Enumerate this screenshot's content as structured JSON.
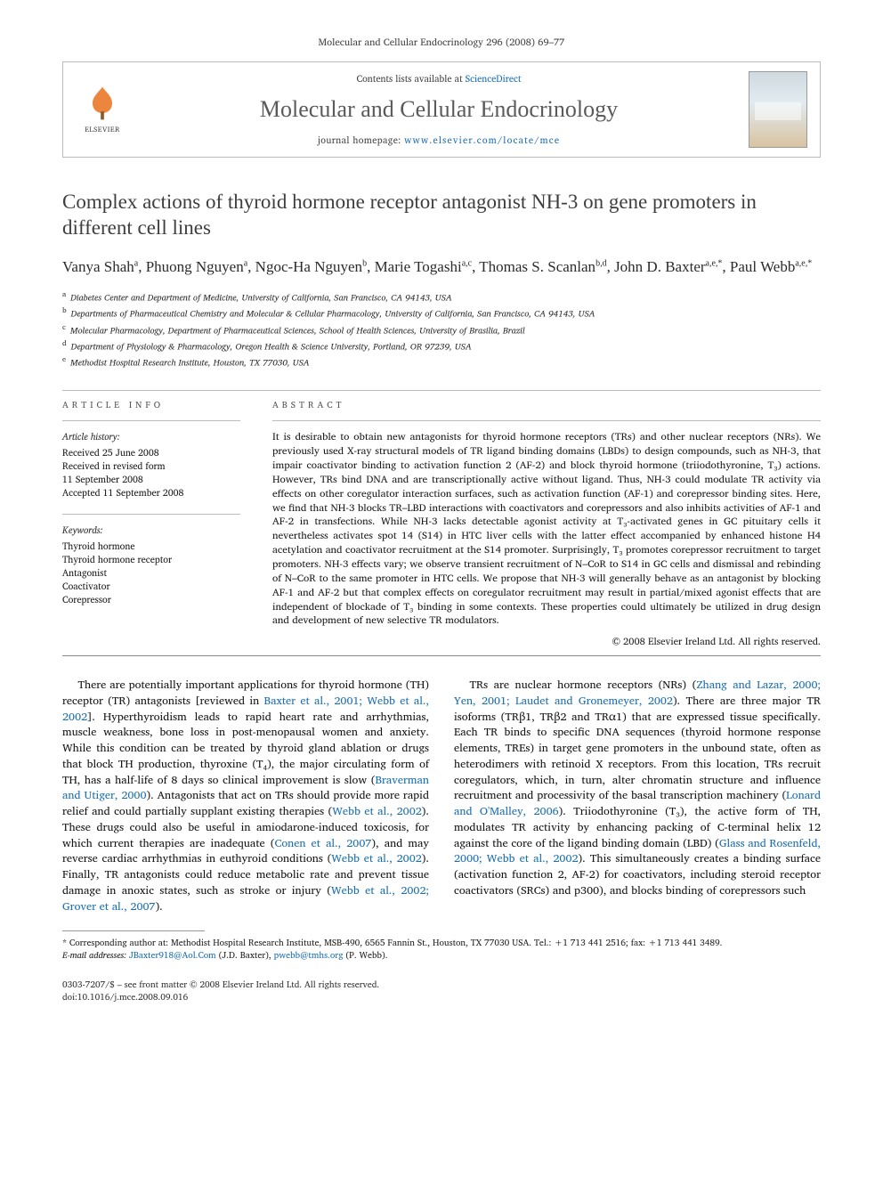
{
  "journal_ref": "Molecular and Cellular Endocrinology 296 (2008) 69–77",
  "header": {
    "contents_prefix": "Contents lists available at ",
    "contents_link": "ScienceDirect",
    "journal_name": "Molecular and Cellular Endocrinology",
    "homepage_prefix": "journal homepage: ",
    "homepage_url": "www.elsevier.com/locate/mce",
    "publisher": "ELSEVIER"
  },
  "title": "Complex actions of thyroid hormone receptor antagonist NH-3 on gene promoters in different cell lines",
  "authors_html": "Vanya Shah<sup>a</sup>, Phuong Nguyen<sup>a</sup>, Ngoc-Ha Nguyen<sup>b</sup>, Marie Togashi<sup>a,c</sup>, Thomas S. Scanlan<sup>b,d</sup>, John D. Baxter<sup>a,e,*</sup>, Paul Webb<sup>a,e,*</sup>",
  "affiliations": [
    {
      "sup": "a",
      "text": "Diabetes Center and Department of Medicine, University of California, San Francisco, CA 94143, USA"
    },
    {
      "sup": "b",
      "text": "Departments of Pharmaceutical Chemistry and Molecular & Cellular Pharmacology, University of California, San Francisco, CA 94143, USA"
    },
    {
      "sup": "c",
      "text": "Molecular Pharmacology, Department of Pharmaceutical Sciences, School of Health Sciences, University of Brasilia, Brazil"
    },
    {
      "sup": "d",
      "text": "Department of Physiology & Pharmacology, Oregon Health & Science University, Portland, OR 97239, USA"
    },
    {
      "sup": "e",
      "text": "Methodist Hospital Research Institute, Houston, TX 77030, USA"
    }
  ],
  "article_info": {
    "heading": "article info",
    "history_label": "Article history:",
    "history": [
      "Received 25 June 2008",
      "Received in revised form",
      "11 September 2008",
      "Accepted 11 September 2008"
    ],
    "keywords_label": "Keywords:",
    "keywords": [
      "Thyroid hormone",
      "Thyroid hormone receptor",
      "Antagonist",
      "Coactivator",
      "Corepressor"
    ]
  },
  "abstract": {
    "heading": "abstract",
    "text": "It is desirable to obtain new antagonists for thyroid hormone receptors (TRs) and other nuclear receptors (NRs). We previously used X-ray structural models of TR ligand binding domains (LBDs) to design compounds, such as NH-3, that impair coactivator binding to activation function 2 (AF-2) and block thyroid hormone (triiodothyronine, T₃) actions. However, TRs bind DNA and are transcriptionally active without ligand. Thus, NH-3 could modulate TR activity via effects on other coregulator interaction surfaces, such as activation function (AF-1) and corepressor binding sites. Here, we find that NH-3 blocks TR–LBD interactions with coactivators and corepressors and also inhibits activities of AF-1 and AF-2 in transfections. While NH-3 lacks detectable agonist activity at T₃-activated genes in GC pituitary cells it nevertheless activates spot 14 (S14) in HTC liver cells with the latter effect accompanied by enhanced histone H4 acetylation and coactivator recruitment at the S14 promoter. Surprisingly, T₃ promotes corepressor recruitment to target promoters. NH-3 effects vary; we observe transient recruitment of N–CoR to S14 in GC cells and dismissal and rebinding of N–CoR to the same promoter in HTC cells. We propose that NH-3 will generally behave as an antagonist by blocking AF-1 and AF-2 but that complex effects on coregulator recruitment may result in partial/mixed agonist effects that are independent of blockade of T₃ binding in some contexts. These properties could ultimately be utilized in drug design and development of new selective TR modulators.",
    "copyright": "© 2008 Elsevier Ireland Ltd. All rights reserved."
  },
  "body": {
    "p1_a": "There are potentially important applications for thyroid hormone (TH) receptor (TR) antagonists [reviewed in ",
    "cite1": "Baxter et al., 2001; Webb et al., 2002",
    "p1_b": "]. Hyperthyroidism leads to rapid heart rate and arrhythmias, muscle weakness, bone loss in post-menopausal women and anxiety. While this condition can be treated by thyroid gland ablation or drugs that block TH production, thyroxine (T₄), the major circulating form of TH, has a half-life of 8 days so clinical improvement is slow (",
    "cite2": "Braverman and Utiger, 2000",
    "p1_c": "). Antagonists that act on TRs should provide more rapid relief and could partially supplant existing therapies (",
    "cite3": "Webb et al., 2002",
    "p1_d": "). These drugs could also be useful in amiodarone-induced toxicosis, for which current therapies are inadequate (",
    "cite4": "Conen et al., 2007",
    "p1_e": "), and may reverse cardiac arrhythmias in euthyroid conditions (",
    "cite5": "Webb et al., 2002",
    "p1_f": "). Finally, TR antagonists could reduce metabolic rate and prevent tissue damage in anoxic states, such as stroke or injury (",
    "cite6": "Webb et al., 2002; Grover et al., 2007",
    "p1_g": ").",
    "p2_a": "TRs are nuclear hormone receptors (NRs) (",
    "cite7": "Zhang and Lazar, 2000; Yen, 2001; Laudet and Gronemeyer, 2002",
    "p2_b": "). There are three major TR isoforms (TRβ1, TRβ2 and TRα1) that are expressed tissue specifically. Each TR binds to specific DNA sequences (thyroid hormone response elements, TREs) in target gene promoters in the unbound state, often as heterodimers with retinoid X receptors. From this location, TRs recruit coregulators, which, in turn, alter chromatin structure and influence recruitment and processivity of the basal transcription machinery (",
    "cite8": "Lonard and O'Malley, 2006",
    "p2_c": "). Triiodothyronine (T₃), the active form of TH, modulates TR activity by enhancing packing of C-terminal helix 12 against the core of the ligand binding domain (LBD) (",
    "cite9": "Glass and Rosenfeld, 2000; Webb et al., 2002",
    "p2_d": "). This simultaneously creates a binding surface (activation function 2, AF-2) for coactivators, including steroid receptor coactivators (SRCs) and p300), and blocks binding of corepressors such"
  },
  "footnotes": {
    "corr_label": "* Corresponding author at: Methodist Hospital Research Institute, MSB-490, 6565 Fannin St., Houston, TX 77030 USA. Tel.: +1 713 441 2516; fax: +1 713 441 3489.",
    "email_label": "E-mail addresses: ",
    "email1": "JBaxter918@Aol.Com",
    "email1_who": " (J.D. Baxter), ",
    "email2": "pwebb@tmhs.org",
    "email2_who": " (P. Webb)."
  },
  "footer": {
    "left1": "0303-7207/$ – see front matter © 2008 Elsevier Ireland Ltd. All rights reserved.",
    "left2": "doi:10.1016/j.mce.2008.09.016"
  },
  "colors": {
    "link": "#1a6fb3",
    "accent": "#e9711c",
    "rule": "#bbbbbb"
  }
}
